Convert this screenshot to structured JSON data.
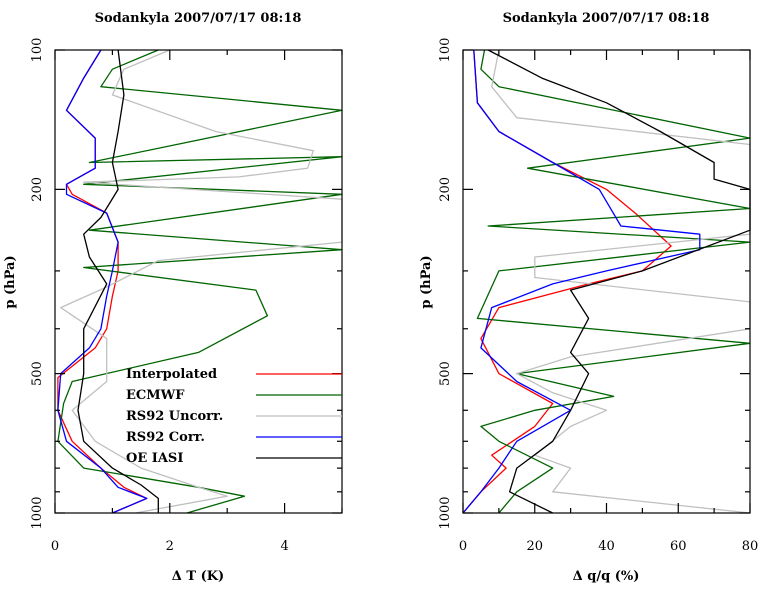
{
  "colors": {
    "interpolated": "#ff0000",
    "ecmwf": "#006400",
    "rs92_uncorr": "#c0c0c0",
    "rs92_corr": "#0000ff",
    "oe_iasi": "#000000"
  },
  "chart_data": [
    {
      "type": "line",
      "title": "Sodankyla 2007/07/17 08:18",
      "xlabel": "Δ T (K)",
      "ylabel": "p (hPa)",
      "xlim": [
        0,
        5
      ],
      "ylim": [
        1000,
        100
      ],
      "yscale": "log",
      "xticks": [
        0,
        2,
        4
      ],
      "yticks": [
        100,
        200,
        500,
        1000
      ],
      "legend": {
        "position": "lower-center",
        "entries": [
          "Interpolated",
          "ECMWF",
          "RS92 Uncorr.",
          "RS92 Corr.",
          "OE IASI"
        ]
      },
      "series": [
        {
          "name": "Interpolated",
          "color_key": "interpolated",
          "points": [
            [
              0.8,
              100
            ],
            [
              0.5,
              115
            ],
            [
              0.2,
              135
            ],
            [
              0.7,
              155
            ],
            [
              0.7,
              180
            ],
            [
              0.2,
              195
            ],
            [
              0.3,
              205
            ],
            [
              0.9,
              225
            ],
            [
              1.1,
              260
            ],
            [
              1.1,
              300
            ],
            [
              1.0,
              340
            ],
            [
              0.9,
              400
            ],
            [
              0.7,
              440
            ],
            [
              0.05,
              510
            ],
            [
              0.05,
              600
            ],
            [
              0.3,
              700
            ],
            [
              0.8,
              800
            ],
            [
              1.2,
              880
            ],
            [
              1.6,
              930
            ],
            [
              1.0,
              1000
            ]
          ]
        },
        {
          "name": "ECMWF",
          "color_key": "ecmwf",
          "points": [
            [
              1.8,
              100
            ],
            [
              1.0,
              110
            ],
            [
              0.8,
              120
            ],
            [
              5.0,
              135
            ],
            [
              0.6,
              175
            ],
            [
              5.0,
              170
            ],
            [
              0.5,
              195
            ],
            [
              5.0,
              205
            ],
            [
              0.6,
              245
            ],
            [
              5.0,
              270
            ],
            [
              0.5,
              295
            ],
            [
              3.5,
              330
            ],
            [
              3.7,
              375
            ],
            [
              2.5,
              450
            ],
            [
              0.3,
              520
            ],
            [
              0.15,
              580
            ],
            [
              0.05,
              700
            ],
            [
              0.5,
              800
            ],
            [
              2.5,
              880
            ],
            [
              3.3,
              920
            ],
            [
              2.3,
              1000
            ]
          ]
        },
        {
          "name": "RS92 Uncorr.",
          "color_key": "rs92_uncorr",
          "points": [
            [
              2.0,
              100
            ],
            [
              1.2,
              110
            ],
            [
              1.0,
              125
            ],
            [
              2.8,
              150
            ],
            [
              4.5,
              165
            ],
            [
              4.4,
              180
            ],
            [
              3.2,
              188
            ],
            [
              0.5,
              193
            ],
            [
              5.0,
              210
            ],
            [
              5.0,
              260
            ],
            [
              1.8,
              285
            ],
            [
              0.9,
              325
            ],
            [
              0.1,
              360
            ],
            [
              0.9,
              420
            ],
            [
              0.9,
              520
            ],
            [
              0.3,
              600
            ],
            [
              0.7,
              700
            ],
            [
              1.5,
              800
            ],
            [
              2.5,
              880
            ],
            [
              3.0,
              920
            ],
            [
              1.4,
              1000
            ]
          ]
        },
        {
          "name": "RS92 Corr.",
          "color_key": "rs92_corr",
          "points": [
            [
              0.8,
              100
            ],
            [
              0.5,
              115
            ],
            [
              0.2,
              135
            ],
            [
              0.7,
              155
            ],
            [
              0.7,
              180
            ],
            [
              0.2,
              195
            ],
            [
              0.2,
              205
            ],
            [
              0.9,
              225
            ],
            [
              1.1,
              260
            ],
            [
              1.0,
              300
            ],
            [
              0.9,
              340
            ],
            [
              0.8,
              400
            ],
            [
              0.6,
              440
            ],
            [
              0.1,
              500
            ],
            [
              0.05,
              600
            ],
            [
              0.2,
              700
            ],
            [
              0.8,
              800
            ],
            [
              1.1,
              880
            ],
            [
              1.6,
              930
            ],
            [
              1.0,
              1000
            ]
          ]
        },
        {
          "name": "OE IASI",
          "color_key": "oe_iasi",
          "points": [
            [
              1.1,
              100
            ],
            [
              1.2,
              125
            ],
            [
              1.1,
              150
            ],
            [
              1.0,
              175
            ],
            [
              1.1,
              200
            ],
            [
              0.8,
              230
            ],
            [
              0.5,
              250
            ],
            [
              0.6,
              280
            ],
            [
              0.9,
              320
            ],
            [
              0.5,
              400
            ],
            [
              0.5,
              500
            ],
            [
              0.4,
              600
            ],
            [
              0.5,
              700
            ],
            [
              1.0,
              800
            ],
            [
              1.5,
              870
            ],
            [
              1.8,
              930
            ],
            [
              1.8,
              1000
            ]
          ]
        }
      ]
    },
    {
      "type": "line",
      "title": "Sodankyla 2007/07/17 08:18",
      "xlabel": "Δ q/q (%)",
      "ylabel": "p (hPa)",
      "xlim": [
        0,
        80
      ],
      "ylim": [
        1000,
        100
      ],
      "yscale": "log",
      "xticks": [
        0,
        20,
        40,
        60,
        80
      ],
      "yticks": [
        100,
        200,
        500,
        1000
      ],
      "series": [
        {
          "name": "Interpolated",
          "color_key": "interpolated",
          "points": [
            [
              3,
              100
            ],
            [
              4,
              130
            ],
            [
              10,
              150
            ],
            [
              25,
              175
            ],
            [
              40,
              200
            ],
            [
              48,
              225
            ],
            [
              58,
              265
            ],
            [
              50,
              300
            ],
            [
              35,
              320
            ],
            [
              10,
              360
            ],
            [
              5,
              420
            ],
            [
              10,
              500
            ],
            [
              25,
              580
            ],
            [
              20,
              650
            ],
            [
              8,
              750
            ],
            [
              12,
              800
            ],
            [
              5,
              900
            ],
            [
              0,
              1000
            ]
          ]
        },
        {
          "name": "ECMWF",
          "color_key": "ecmwf",
          "points": [
            [
              6,
              100
            ],
            [
              5,
              110
            ],
            [
              10,
              120
            ],
            [
              80,
              155
            ],
            [
              18,
              180
            ],
            [
              80,
              220
            ],
            [
              7,
              240
            ],
            [
              80,
              260
            ],
            [
              10,
              300
            ],
            [
              4,
              380
            ],
            [
              80,
              430
            ],
            [
              15,
              500
            ],
            [
              42,
              560
            ],
            [
              20,
              600
            ],
            [
              5,
              650
            ],
            [
              10,
              700
            ],
            [
              25,
              800
            ],
            [
              15,
              900
            ],
            [
              10,
              1000
            ]
          ]
        },
        {
          "name": "RS92 Uncorr.",
          "color_key": "rs92_uncorr",
          "points": [
            [
              10,
              100
            ],
            [
              8,
              120
            ],
            [
              15,
              140
            ],
            [
              80,
              160
            ],
            [
              80,
              250
            ],
            [
              20,
              280
            ],
            [
              20,
              310
            ],
            [
              80,
              350
            ],
            [
              80,
              400
            ],
            [
              30,
              460
            ],
            [
              15,
              500
            ],
            [
              25,
              550
            ],
            [
              40,
              600
            ],
            [
              30,
              650
            ],
            [
              20,
              750
            ],
            [
              30,
              800
            ],
            [
              25,
              900
            ],
            [
              80,
              1000
            ]
          ]
        },
        {
          "name": "RS92 Corr.",
          "color_key": "rs92_corr",
          "points": [
            [
              3,
              100
            ],
            [
              4,
              130
            ],
            [
              10,
              150
            ],
            [
              25,
              175
            ],
            [
              38,
              200
            ],
            [
              44,
              240
            ],
            [
              66,
              250
            ],
            [
              66,
              270
            ],
            [
              40,
              300
            ],
            [
              25,
              320
            ],
            [
              8,
              360
            ],
            [
              5,
              440
            ],
            [
              15,
              520
            ],
            [
              30,
              600
            ],
            [
              15,
              700
            ],
            [
              10,
              800
            ],
            [
              5,
              900
            ],
            [
              0,
              1000
            ]
          ]
        },
        {
          "name": "OE IASI",
          "color_key": "oe_iasi",
          "points": [
            [
              7,
              100
            ],
            [
              22,
              115
            ],
            [
              40,
              130
            ],
            [
              55,
              150
            ],
            [
              70,
              175
            ],
            [
              70,
              190
            ],
            [
              80,
              200
            ],
            [
              80,
              245
            ],
            [
              50,
              300
            ],
            [
              30,
              330
            ],
            [
              35,
              380
            ],
            [
              30,
              450
            ],
            [
              35,
              500
            ],
            [
              30,
              600
            ],
            [
              25,
              700
            ],
            [
              15,
              800
            ],
            [
              13,
              900
            ],
            [
              25,
              1000
            ]
          ]
        }
      ]
    }
  ]
}
